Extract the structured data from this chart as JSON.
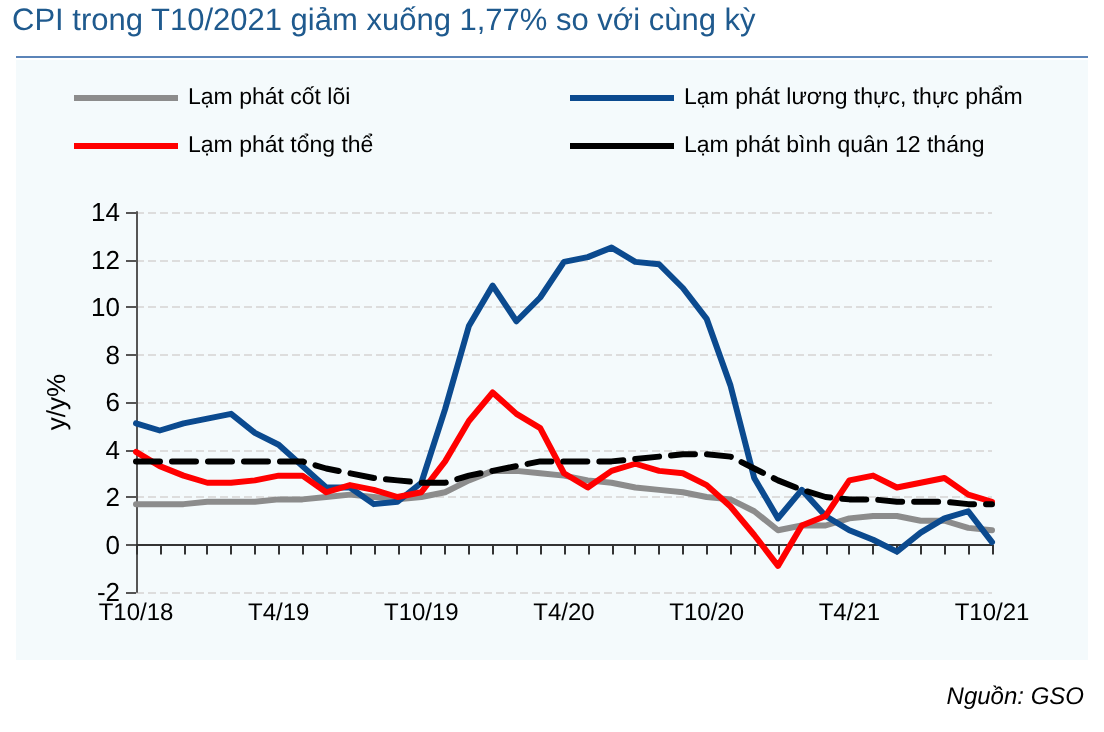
{
  "chart_data": {
    "type": "line",
    "title": "CPI trong T10/2021 giảm xuống 1,77% so với cùng kỳ",
    "ylabel": "y/y%",
    "categories": [
      "T10/18",
      null,
      null,
      null,
      null,
      null,
      "T4/19",
      null,
      null,
      null,
      null,
      null,
      "T10/19",
      null,
      null,
      null,
      null,
      null,
      "T4/20",
      null,
      null,
      null,
      null,
      null,
      "T10/20",
      null,
      null,
      null,
      null,
      null,
      "T4/21",
      null,
      null,
      null,
      null,
      null,
      "T10/21"
    ],
    "series": [
      {
        "name": "Lạm phát cốt lõi",
        "color": "#8c8c8c",
        "values": [
          1.7,
          1.7,
          1.7,
          1.8,
          1.8,
          1.8,
          1.9,
          1.9,
          2.0,
          2.1,
          2.0,
          1.9,
          2.0,
          2.2,
          2.7,
          3.1,
          3.1,
          3.0,
          2.9,
          2.7,
          2.6,
          2.4,
          2.3,
          2.2,
          2.0,
          1.9,
          1.4,
          0.6,
          0.8,
          0.8,
          1.1,
          1.2,
          1.2,
          1.0,
          1.0,
          0.7,
          0.6
        ]
      },
      {
        "name": "Lạm phát lương thực, thực phẩm",
        "color": "#0b4a8f",
        "values": [
          5.1,
          4.8,
          5.1,
          5.3,
          5.5,
          4.7,
          4.2,
          3.3,
          2.4,
          2.4,
          1.7,
          1.8,
          2.6,
          5.7,
          9.2,
          10.9,
          9.4,
          10.4,
          11.9,
          12.1,
          12.5,
          11.9,
          11.8,
          10.8,
          9.5,
          6.7,
          2.8,
          1.1,
          2.3,
          1.2,
          0.6,
          0.2,
          -0.3,
          0.5,
          1.1,
          1.4,
          0.1
        ]
      },
      {
        "name": "Lạm phát tổng thể",
        "color": "#ff0000",
        "values": [
          3.9,
          3.3,
          2.9,
          2.6,
          2.6,
          2.7,
          2.9,
          2.9,
          2.2,
          2.5,
          2.3,
          2.0,
          2.2,
          3.5,
          5.2,
          6.4,
          5.5,
          4.9,
          3.0,
          2.4,
          3.1,
          3.4,
          3.1,
          3.0,
          2.5,
          1.6,
          0.4,
          -0.9,
          0.8,
          1.2,
          2.7,
          2.9,
          2.4,
          2.6,
          2.8,
          2.1,
          1.8
        ]
      },
      {
        "name": "Lạm phát bình quân 12 tháng",
        "color": "#000000",
        "line_style": "dashed",
        "values": [
          3.5,
          3.5,
          3.5,
          3.5,
          3.5,
          3.5,
          3.5,
          3.5,
          3.2,
          3.0,
          2.8,
          2.7,
          2.6,
          2.6,
          2.9,
          3.1,
          3.3,
          3.5,
          3.5,
          3.5,
          3.5,
          3.6,
          3.7,
          3.8,
          3.8,
          3.7,
          3.2,
          2.7,
          2.3,
          2.0,
          1.9,
          1.9,
          1.8,
          1.8,
          1.8,
          1.7,
          1.7
        ]
      }
    ],
    "ylim": [
      -2,
      14
    ],
    "yticks": [
      -2,
      0,
      2,
      4,
      6,
      8,
      10,
      12,
      14
    ],
    "grid": "y",
    "legend": "top",
    "marker": "none",
    "line_style": "solid",
    "annotations": [
      "Nguồn: GSO"
    ]
  }
}
